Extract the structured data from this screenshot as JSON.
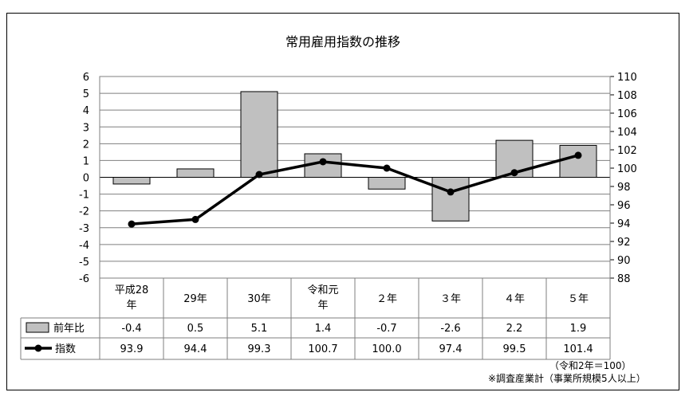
{
  "chart_data": {
    "type": "bar+line",
    "title": "常用雇用指数の推移",
    "categories": [
      [
        "平成28",
        "年"
      ],
      [
        "29年"
      ],
      [
        "30年"
      ],
      [
        "令和元",
        "年"
      ],
      [
        "２年"
      ],
      [
        "３年"
      ],
      [
        "４年"
      ],
      [
        "５年"
      ]
    ],
    "series": [
      {
        "name": "前年比",
        "type": "bar",
        "axis": "left",
        "color": "#c0c0c0",
        "values": [
          -0.4,
          0.5,
          5.1,
          1.4,
          -0.7,
          -2.6,
          2.2,
          1.9
        ],
        "labels": [
          "-0.4",
          "0.5",
          "5.1",
          "1.4",
          "-0.7",
          "-2.6",
          "2.2",
          "1.9"
        ]
      },
      {
        "name": "指数",
        "type": "line",
        "axis": "right",
        "color": "#000000",
        "values": [
          93.9,
          94.4,
          99.3,
          100.7,
          100.0,
          97.4,
          99.5,
          101.4
        ],
        "labels": [
          "93.9",
          "94.4",
          "99.3",
          "100.7",
          "100.0",
          "97.4",
          "99.5",
          "101.4"
        ]
      }
    ],
    "y_left": {
      "min": -6,
      "max": 6,
      "step": 1
    },
    "y_right": {
      "min": 88,
      "max": 110,
      "step": 2
    },
    "grid": true,
    "legend": "data-table"
  },
  "notes": {
    "base": "（令和2年＝100）",
    "source": "※調査産業計（事業所規模5人以上）"
  }
}
